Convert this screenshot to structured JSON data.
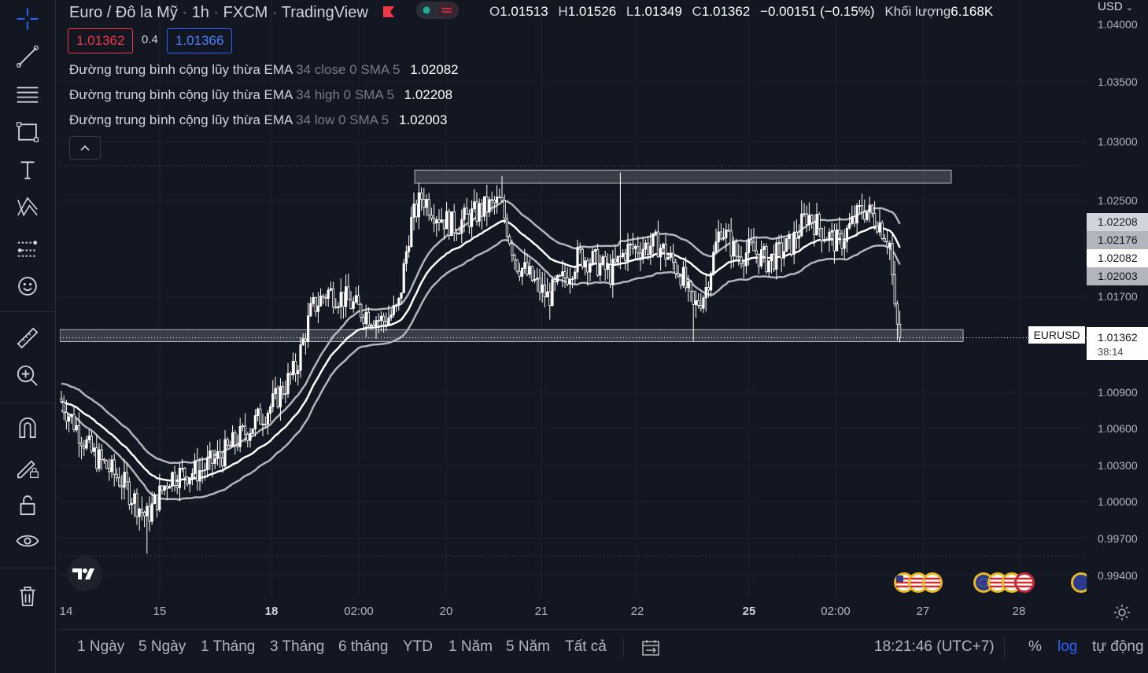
{
  "header": {
    "symbol": "Euro / Đô la Mỹ",
    "interval": "1h",
    "exchange": "FXCM",
    "source": "TradingView",
    "ohlc": {
      "o_label": "O",
      "o": "1.01513",
      "h_label": "H",
      "h": "1.01526",
      "l_label": "L",
      "l": "1.01349",
      "c_label": "C",
      "c": "1.01362",
      "change": "−0.00151 (−0.15%)",
      "volume_label": "Khối lượng",
      "volume": "6.168K"
    },
    "sell_price": "1.01362",
    "spread": "0.4",
    "buy_price": "1.01366"
  },
  "indicators": [
    {
      "name": "Đường trung bình cộng lũy thừa EMA",
      "params": "34 close 0 SMA 5",
      "value": "1.02082"
    },
    {
      "name": "Đường trung bình cộng lũy thừa EMA",
      "params": "34 high 0 SMA 5",
      "value": "1.02208"
    },
    {
      "name": "Đường trung bình cộng lũy thừa EMA",
      "params": "34 low 0 SMA 5",
      "value": "1.02003"
    }
  ],
  "price_axis": {
    "currency": "USD",
    "labels": [
      "1.04000",
      "1.03500",
      "1.03000",
      "1.02500",
      "1.01700",
      "1.00900",
      "1.00600",
      "1.00300",
      "1.00000",
      "0.99700",
      "0.99400"
    ],
    "badges": [
      {
        "text": "1.02208",
        "bg": "#d1d4dc",
        "fg": "#131722"
      },
      {
        "text": "1.02176",
        "bg": "#b2b5be",
        "fg": "#131722"
      },
      {
        "text": "1.02082",
        "bg": "#ffffff",
        "fg": "#131722"
      },
      {
        "text": "1.02003",
        "bg": "#b2b5be",
        "fg": "#131722"
      }
    ],
    "last_price": "1.01362",
    "countdown": "38:14",
    "symbol_tag": "EURUSD"
  },
  "time_axis": {
    "labels": [
      "14",
      "15",
      "18",
      "02:00",
      "20",
      "21",
      "22",
      "25",
      "02:00",
      "27",
      "28"
    ]
  },
  "bottom": {
    "ranges": [
      "1 Ngày",
      "5 Ngày",
      "1 Tháng",
      "3 Tháng",
      "6 tháng",
      "YTD",
      "1 Năm",
      "5 Năm",
      "Tất cả"
    ],
    "clock": "18:21:46 (UTC+7)",
    "percent": "%",
    "log": "log",
    "auto": "tự động"
  },
  "toolbar": {
    "icons": [
      "crosshair-icon",
      "trend-line-icon",
      "fib-lines-icon",
      "rectangle-icon",
      "text-icon",
      "pattern-icon",
      "forecast-icon",
      "emoji-icon",
      "ruler-icon",
      "zoom-in-icon",
      "magnet-icon",
      "lock-pencil-icon",
      "lock-icon",
      "eye-icon",
      "trash-icon"
    ]
  },
  "chart_data": {
    "type": "candlestick",
    "symbol": "EURUSD",
    "ylim": [
      0.9925,
      1.041
    ],
    "last": 1.01362,
    "ema_close_last": 1.02082,
    "ema_high_last": 1.02208,
    "ema_low_last": 1.02003,
    "resistance_zone": [
      1.0266,
      1.0277
    ],
    "support_zone": [
      1.0133,
      1.0143
    ]
  },
  "colors": {
    "background": "#131722",
    "sell": "#f23645",
    "buy": "#2962ff",
    "candle": "#ffffff",
    "ema_close": "#ffffff",
    "ema_band": "#b2b5be"
  }
}
